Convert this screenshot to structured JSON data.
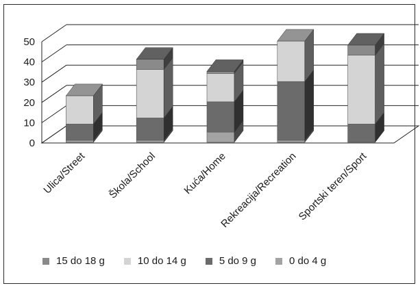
{
  "chart_data": {
    "type": "bar",
    "stacked": true,
    "three_d": true,
    "categories": [
      "Ulica/Street",
      "Škola/School",
      "Kuća/Home",
      "Rekreacija/Recreation",
      "Sportski teren/Sport"
    ],
    "ylim": [
      0,
      50
    ],
    "yticks": [
      0,
      10,
      20,
      30,
      40,
      50
    ],
    "grid": true,
    "legend_position": "bottom",
    "series": [
      {
        "name": "0 do 4 g",
        "color": "#a3a3a3",
        "values": [
          1,
          1,
          5,
          1,
          0
        ]
      },
      {
        "name": "5 do 9 g",
        "color": "#6b6b6b",
        "values": [
          8,
          11,
          15,
          29,
          9
        ]
      },
      {
        "name": "10 do 14 g",
        "color": "#d4d4d4",
        "values": [
          14,
          24,
          14,
          20,
          34
        ]
      },
      {
        "name": "15 do 18 g",
        "color": "#8a8a8a",
        "values": [
          0,
          5,
          1,
          0,
          5
        ]
      }
    ],
    "legend_order": [
      "15 do 18 g",
      "10 do 14 g",
      "5 do 9 g",
      "0 do 4 g"
    ]
  }
}
